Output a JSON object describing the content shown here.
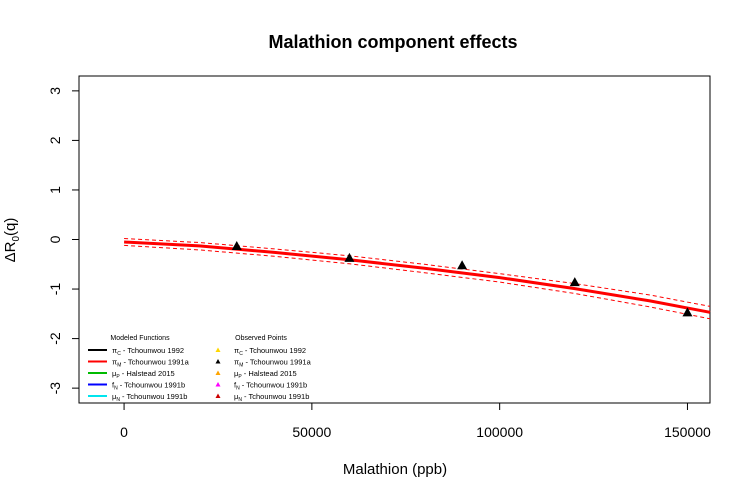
{
  "chart_data": {
    "type": "line",
    "title": "Malathion component effects",
    "xlabel": "Malathion (ppb)",
    "ylabel_main": "ΔR",
    "ylabel_sub": "0",
    "ylabel_suffix": "(q)",
    "xlim": [
      -12000,
      156000
    ],
    "ylim": [
      -3.3,
      3.3
    ],
    "x_ticks": [
      0,
      50000,
      100000,
      150000
    ],
    "x_tick_labels": [
      "0",
      "50000",
      "100000",
      "150000"
    ],
    "y_ticks": [
      -3,
      -2,
      -1,
      0,
      1,
      2,
      3
    ],
    "y_tick_labels": [
      "-3",
      "-2",
      "-1",
      "0",
      "1",
      "2",
      "3"
    ],
    "series": [
      {
        "name": "π_M - Tchounwou 1991a",
        "color": "#ff0000",
        "style": "solid",
        "x": [
          0,
          20000,
          40000,
          60000,
          80000,
          100000,
          120000,
          140000,
          156000
        ],
        "y": [
          -0.05,
          -0.13,
          -0.26,
          -0.41,
          -0.58,
          -0.77,
          -0.99,
          -1.24,
          -1.47
        ]
      },
      {
        "name": "upper bound",
        "color": "#ff0000",
        "style": "dashed",
        "x": [
          0,
          20000,
          40000,
          60000,
          80000,
          100000,
          120000,
          140000,
          156000
        ],
        "y": [
          0.02,
          -0.06,
          -0.19,
          -0.33,
          -0.5,
          -0.69,
          -0.89,
          -1.12,
          -1.35
        ]
      },
      {
        "name": "lower bound",
        "color": "#ff0000",
        "style": "dashed",
        "x": [
          0,
          20000,
          40000,
          60000,
          80000,
          100000,
          120000,
          140000,
          156000
        ],
        "y": [
          -0.12,
          -0.21,
          -0.34,
          -0.49,
          -0.67,
          -0.86,
          -1.09,
          -1.36,
          -1.6
        ]
      }
    ],
    "observed_points": {
      "name": "π_M - Tchounwou 1991a",
      "color": "#000000",
      "marker": "triangle",
      "x": [
        30000,
        60000,
        90000,
        120000,
        150000
      ],
      "y": [
        -0.13,
        -0.37,
        -0.52,
        -0.86,
        -1.47
      ]
    },
    "legend": {
      "placement": "bottom-left",
      "functions_title": "Modeled Functions",
      "points_title": "Observed Points",
      "functions": [
        {
          "symbol": "π",
          "sub": "C",
          "text": " - Tchounwou 1992",
          "color": "#000000"
        },
        {
          "symbol": "π",
          "sub": "M",
          "text": " - Tchounwou 1991a",
          "color": "#ff0000"
        },
        {
          "symbol": "μ",
          "sub": "P",
          "text": " - Halstead 2015",
          "color": "#00bb00"
        },
        {
          "symbol": "f",
          "sub": "N",
          "text": " - Tchounwou 1991b",
          "color": "#0000ff"
        },
        {
          "symbol": "μ",
          "sub": "N",
          "text": " - Tchounwou 1991b",
          "color": "#00e5ee"
        }
      ],
      "points": [
        {
          "symbol": "π",
          "sub": "C",
          "text": " - Tchounwou 1992",
          "color": "#ffd700"
        },
        {
          "symbol": "π",
          "sub": "M",
          "text": " - Tchounwou 1991a",
          "color": "#000000"
        },
        {
          "symbol": "μ",
          "sub": "P",
          "text": " - Halstead 2015",
          "color": "#ffa500"
        },
        {
          "symbol": "f",
          "sub": "N",
          "text": " - Tchounwou 1991b",
          "color": "#ff00ff"
        },
        {
          "symbol": "μ",
          "sub": "N",
          "text": " - Tchounwou 1991b",
          "color": "#cc0000"
        }
      ]
    }
  }
}
